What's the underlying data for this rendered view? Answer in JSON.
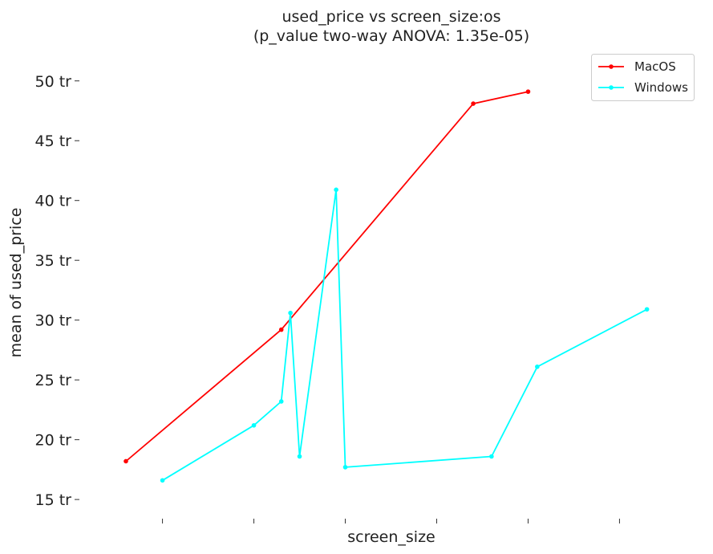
{
  "chart_data": {
    "type": "line",
    "title": "used_price vs screen_size:os",
    "subtitle": "(p_value two-way ANOVA: 1.35e-05)",
    "xlabel": "screen_size",
    "ylabel": "mean of used_price",
    "ylim": [
      13.8,
      52.4
    ],
    "x_ticks": [
      12,
      13,
      14,
      15,
      16,
      17
    ],
    "x_tick_labels": [
      "",
      "",
      "",
      "",
      "",
      ""
    ],
    "y_ticks": [
      15,
      20,
      25,
      30,
      35,
      40,
      45,
      50
    ],
    "y_tick_labels": [
      "15 tr",
      "20 tr",
      "25 tr",
      "30 tr",
      "35 tr",
      "40 tr",
      "45 tr",
      "50 tr"
    ],
    "legend_position": "top-right",
    "grid": false,
    "series": [
      {
        "name": "MacOS",
        "color": "#ff0000",
        "x": [
          11.6,
          13.3,
          15.4,
          16.0
        ],
        "y": [
          18.2,
          29.2,
          48.1,
          49.1
        ]
      },
      {
        "name": "Windows",
        "color": "#00ffff",
        "x": [
          12.0,
          13.0,
          13.3,
          13.4,
          13.5,
          13.9,
          14.0,
          15.6,
          16.1,
          17.3
        ],
        "y": [
          16.6,
          21.2,
          23.2,
          30.6,
          18.6,
          40.9,
          17.7,
          18.6,
          26.1,
          30.9
        ]
      }
    ]
  }
}
